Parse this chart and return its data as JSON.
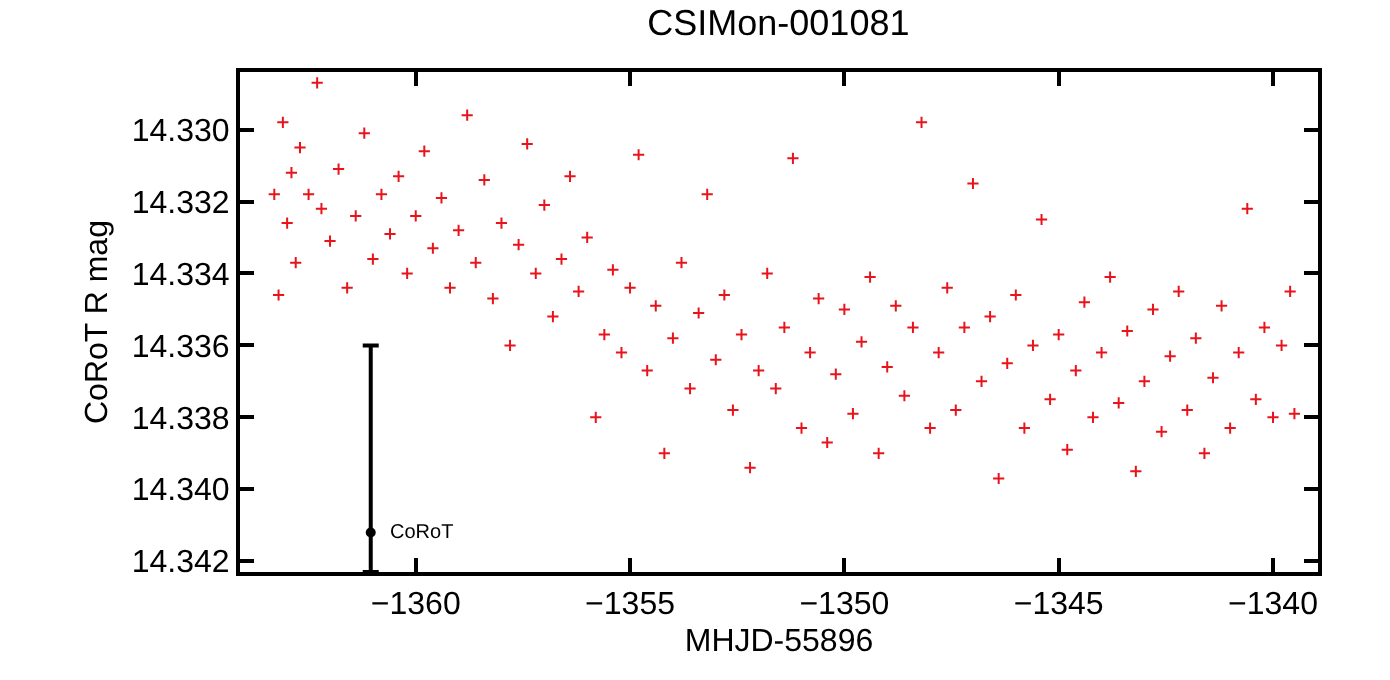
{
  "chart_data": {
    "type": "scatter",
    "title": "CSIMon-001081",
    "xlabel": "MHJD-55896",
    "ylabel": "CoRoT R mag",
    "marker": "cross",
    "grid": false,
    "legend": false,
    "xlim": [
      -1364.1,
      -1338.95
    ],
    "ylim": [
      14.3423,
      14.3284
    ],
    "xticks": [
      -1360,
      -1355,
      -1350,
      -1345,
      -1340
    ],
    "yticks": [
      {
        "value": 14.33,
        "label": "14.330"
      },
      {
        "value": 14.332,
        "label": "14.332"
      },
      {
        "value": 14.334,
        "label": "14.334"
      },
      {
        "value": 14.336,
        "label": "14.336"
      },
      {
        "value": 14.338,
        "label": "14.338"
      },
      {
        "value": 14.34,
        "label": "14.340"
      },
      {
        "value": 14.342,
        "label": "14.342"
      }
    ],
    "series": [
      {
        "color": "#e8141c",
        "x": [
          -1363.3,
          -1363.2,
          -1363.1,
          -1363.0,
          -1362.9,
          -1362.8,
          -1362.7,
          -1362.5,
          -1362.3,
          -1362.2,
          -1362.0,
          -1361.8,
          -1361.6,
          -1361.4,
          -1361.2,
          -1361.0,
          -1360.8,
          -1360.6,
          -1360.4,
          -1360.2,
          -1360.0,
          -1359.8,
          -1359.6,
          -1359.4,
          -1359.2,
          -1359.0,
          -1358.8,
          -1358.6,
          -1358.4,
          -1358.2,
          -1358.0,
          -1357.8,
          -1357.6,
          -1357.4,
          -1357.2,
          -1357.0,
          -1356.8,
          -1356.6,
          -1356.4,
          -1356.2,
          -1356.0,
          -1355.8,
          -1355.6,
          -1355.4,
          -1355.2,
          -1355.0,
          -1354.8,
          -1354.6,
          -1354.4,
          -1354.2,
          -1354.0,
          -1353.8,
          -1353.6,
          -1353.4,
          -1353.2,
          -1353.0,
          -1352.8,
          -1352.6,
          -1352.4,
          -1352.2,
          -1352.0,
          -1351.8,
          -1351.6,
          -1351.4,
          -1351.2,
          -1351.0,
          -1350.8,
          -1350.6,
          -1350.4,
          -1350.2,
          -1350.0,
          -1349.8,
          -1349.6,
          -1349.4,
          -1349.2,
          -1349.0,
          -1348.8,
          -1348.6,
          -1348.4,
          -1348.2,
          -1348.0,
          -1347.8,
          -1347.6,
          -1347.4,
          -1347.2,
          -1347.0,
          -1346.8,
          -1346.6,
          -1346.4,
          -1346.2,
          -1346.0,
          -1345.8,
          -1345.6,
          -1345.4,
          -1345.2,
          -1345.0,
          -1344.8,
          -1344.6,
          -1344.4,
          -1344.2,
          -1344.0,
          -1343.8,
          -1343.6,
          -1343.4,
          -1343.2,
          -1343.0,
          -1342.8,
          -1342.6,
          -1342.4,
          -1342.2,
          -1342.0,
          -1341.8,
          -1341.6,
          -1341.4,
          -1341.2,
          -1341.0,
          -1340.8,
          -1340.6,
          -1340.4,
          -1340.2,
          -1340.0,
          -1339.8,
          -1339.6,
          -1339.5
        ],
        "values": [
          14.3318,
          14.3346,
          14.3298,
          14.3326,
          14.3312,
          14.3337,
          14.3305,
          14.3318,
          14.3287,
          14.3322,
          14.3331,
          14.3311,
          14.3344,
          14.3324,
          14.3301,
          14.3336,
          14.3318,
          14.3329,
          14.3313,
          14.334,
          14.3324,
          14.3306,
          14.3333,
          14.3319,
          14.3344,
          14.3328,
          14.3296,
          14.3337,
          14.3314,
          14.3347,
          14.3326,
          14.336,
          14.3332,
          14.3304,
          14.334,
          14.3321,
          14.3352,
          14.3336,
          14.3313,
          14.3345,
          14.333,
          14.338,
          14.3357,
          14.3339,
          14.3362,
          14.3344,
          14.3307,
          14.3367,
          14.3349,
          14.339,
          14.3358,
          14.3337,
          14.3372,
          14.3351,
          14.3318,
          14.3364,
          14.3346,
          14.3378,
          14.3357,
          14.3394,
          14.3367,
          14.334,
          14.3372,
          14.3355,
          14.3308,
          14.3383,
          14.3362,
          14.3347,
          14.3387,
          14.3368,
          14.335,
          14.3379,
          14.3359,
          14.3341,
          14.339,
          14.3366,
          14.3349,
          14.3374,
          14.3355,
          14.3298,
          14.3383,
          14.3362,
          14.3344,
          14.3378,
          14.3355,
          14.3315,
          14.337,
          14.3352,
          14.3397,
          14.3365,
          14.3346,
          14.3383,
          14.336,
          14.3325,
          14.3375,
          14.3357,
          14.3389,
          14.3367,
          14.3348,
          14.338,
          14.3362,
          14.3341,
          14.3376,
          14.3356,
          14.3395,
          14.337,
          14.335,
          14.3384,
          14.3363,
          14.3345,
          14.3378,
          14.3358,
          14.339,
          14.3369,
          14.3349,
          14.3383,
          14.3362,
          14.3322,
          14.3375,
          14.3355,
          14.338,
          14.336,
          14.3345,
          14.3379
        ]
      },
      {
        "name": "CoRoT",
        "color": "#000000",
        "marker": "circle",
        "x": [
          -1361.05
        ],
        "values": [
          14.3412
        ],
        "errors": [
          [
            14.336,
            14.3423
          ]
        ]
      }
    ]
  }
}
